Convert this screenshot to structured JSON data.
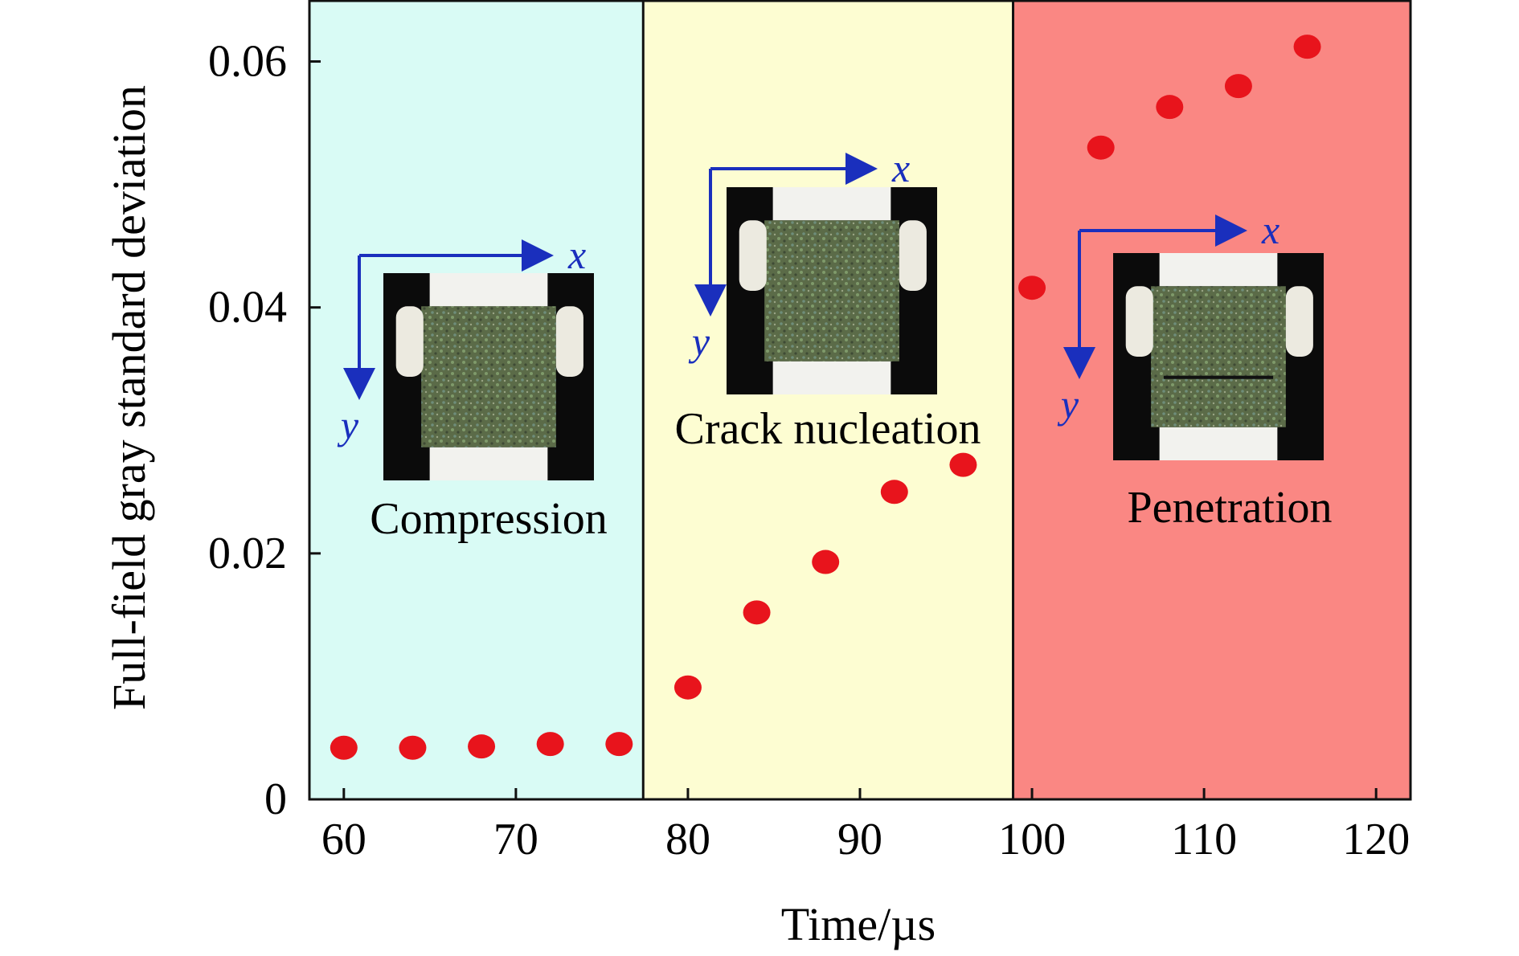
{
  "chart_data": {
    "type": "scatter",
    "title": "",
    "xlabel": "Time/µs",
    "ylabel": "Full-field gray standard deviation",
    "xlim": [
      58,
      122
    ],
    "ylim": [
      0,
      0.065
    ],
    "xticks": [
      60,
      70,
      80,
      90,
      100,
      110,
      120
    ],
    "yticks": [
      0,
      0.02,
      0.04,
      0.06
    ],
    "xtick_labels": [
      "60",
      "70",
      "80",
      "90",
      "100",
      "110",
      "120"
    ],
    "ytick_labels": [
      "0",
      "0.02",
      "0.04",
      "0.06"
    ],
    "grid": false,
    "marker_color": "#e8141c",
    "series": [
      {
        "x": [
          60,
          64,
          68,
          72,
          76,
          80,
          84,
          88,
          92,
          96,
          100,
          104,
          108,
          112,
          116
        ],
        "y": [
          0.0042,
          0.0042,
          0.0043,
          0.0045,
          0.0045,
          0.0091,
          0.0152,
          0.0193,
          0.025,
          0.0272,
          0.0416,
          0.053,
          0.0563,
          0.058,
          0.0612
        ]
      }
    ],
    "regions": [
      {
        "label": "Compression",
        "x_start": 58,
        "x_end": 77.4,
        "color": "#d9fbf5"
      },
      {
        "label": "Crack nucleation",
        "x_start": 77.4,
        "x_end": 98.9,
        "color": "#fdfdd2"
      },
      {
        "label": "Penetration",
        "x_start": 98.9,
        "x_end": 122,
        "color": "#fa8783"
      }
    ],
    "insets": [
      {
        "name": "compression",
        "axis_x_label": "x",
        "axis_y_label": "y"
      },
      {
        "name": "crack-nucleation",
        "axis_x_label": "x",
        "axis_y_label": "y"
      },
      {
        "name": "penetration",
        "axis_x_label": "x",
        "axis_y_label": "y"
      }
    ],
    "inset_axis_color": "#1a2fbd"
  }
}
